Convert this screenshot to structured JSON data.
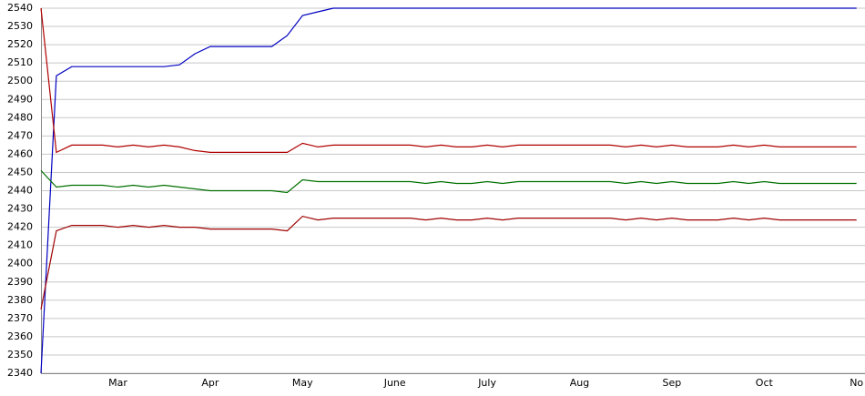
{
  "chart_data": {
    "type": "line",
    "categories": [
      null,
      null,
      null,
      null,
      null,
      "Mar",
      null,
      null,
      null,
      null,
      null,
      "Apr",
      null,
      null,
      null,
      null,
      null,
      "May",
      null,
      null,
      null,
      null,
      null,
      "June",
      null,
      null,
      null,
      null,
      null,
      "July",
      null,
      null,
      null,
      null,
      null,
      "Aug",
      null,
      null,
      null,
      null,
      null,
      "Sep",
      null,
      null,
      null,
      null,
      null,
      "Oct",
      null,
      null,
      null,
      null,
      null,
      "No"
    ],
    "series": [
      {
        "color": "#0000c0",
        "values": [
          2340,
          2503,
          2508,
          2508,
          2508,
          2508,
          2508,
          2508,
          2508,
          2509,
          2515,
          2519,
          2519,
          2519,
          2519,
          2519,
          2525,
          2536,
          2538,
          2540,
          2540,
          2540,
          2540,
          2540,
          2540,
          2540,
          2540,
          2540,
          2540,
          2540,
          2540,
          2540,
          2540,
          2540,
          2540,
          2540,
          2540,
          2540,
          2540,
          2540,
          2540,
          2540,
          2540,
          2540,
          2540,
          2540,
          2540,
          2540,
          2540,
          2540,
          2540,
          2540,
          2540,
          2540
        ]
      },
      {
        "color": "#b00000",
        "values": [
          2540,
          2461,
          2465,
          2465,
          2465,
          2464,
          2465,
          2464,
          2465,
          2464,
          2462,
          2461,
          2461,
          2461,
          2461,
          2461,
          2461,
          2466,
          2464,
          2465,
          2465,
          2465,
          2465,
          2465,
          2465,
          2464,
          2465,
          2464,
          2464,
          2465,
          2464,
          2465,
          2465,
          2465,
          2465,
          2465,
          2465,
          2465,
          2464,
          2465,
          2464,
          2465,
          2464,
          2464,
          2464,
          2465,
          2464,
          2465,
          2464,
          2464,
          2464,
          2464,
          2464,
          2464
        ]
      },
      {
        "color": "#007000",
        "values": [
          2451,
          2442,
          2443,
          2443,
          2443,
          2442,
          2443,
          2442,
          2443,
          2442,
          2441,
          2440,
          2440,
          2440,
          2440,
          2440,
          2439,
          2446,
          2445,
          2445,
          2445,
          2445,
          2445,
          2445,
          2445,
          2444,
          2445,
          2444,
          2444,
          2445,
          2444,
          2445,
          2445,
          2445,
          2445,
          2445,
          2445,
          2445,
          2444,
          2445,
          2444,
          2445,
          2444,
          2444,
          2444,
          2445,
          2444,
          2445,
          2444,
          2444,
          2444,
          2444,
          2444,
          2444
        ]
      },
      {
        "color": "#a00000",
        "values": [
          2375,
          2418,
          2421,
          2421,
          2421,
          2420,
          2421,
          2420,
          2421,
          2420,
          2420,
          2419,
          2419,
          2419,
          2419,
          2419,
          2418,
          2426,
          2424,
          2425,
          2425,
          2425,
          2425,
          2425,
          2425,
          2424,
          2425,
          2424,
          2424,
          2425,
          2424,
          2425,
          2425,
          2425,
          2425,
          2425,
          2425,
          2425,
          2424,
          2425,
          2424,
          2425,
          2424,
          2424,
          2424,
          2425,
          2424,
          2425,
          2424,
          2424,
          2424,
          2424,
          2424,
          2424
        ]
      }
    ],
    "ylim": [
      2340,
      2540
    ],
    "yticks": [
      2340,
      2350,
      2360,
      2370,
      2380,
      2390,
      2400,
      2410,
      2420,
      2430,
      2440,
      2450,
      2460,
      2470,
      2480,
      2490,
      2500,
      2510,
      2520,
      2530,
      2540
    ],
    "grid": true
  }
}
